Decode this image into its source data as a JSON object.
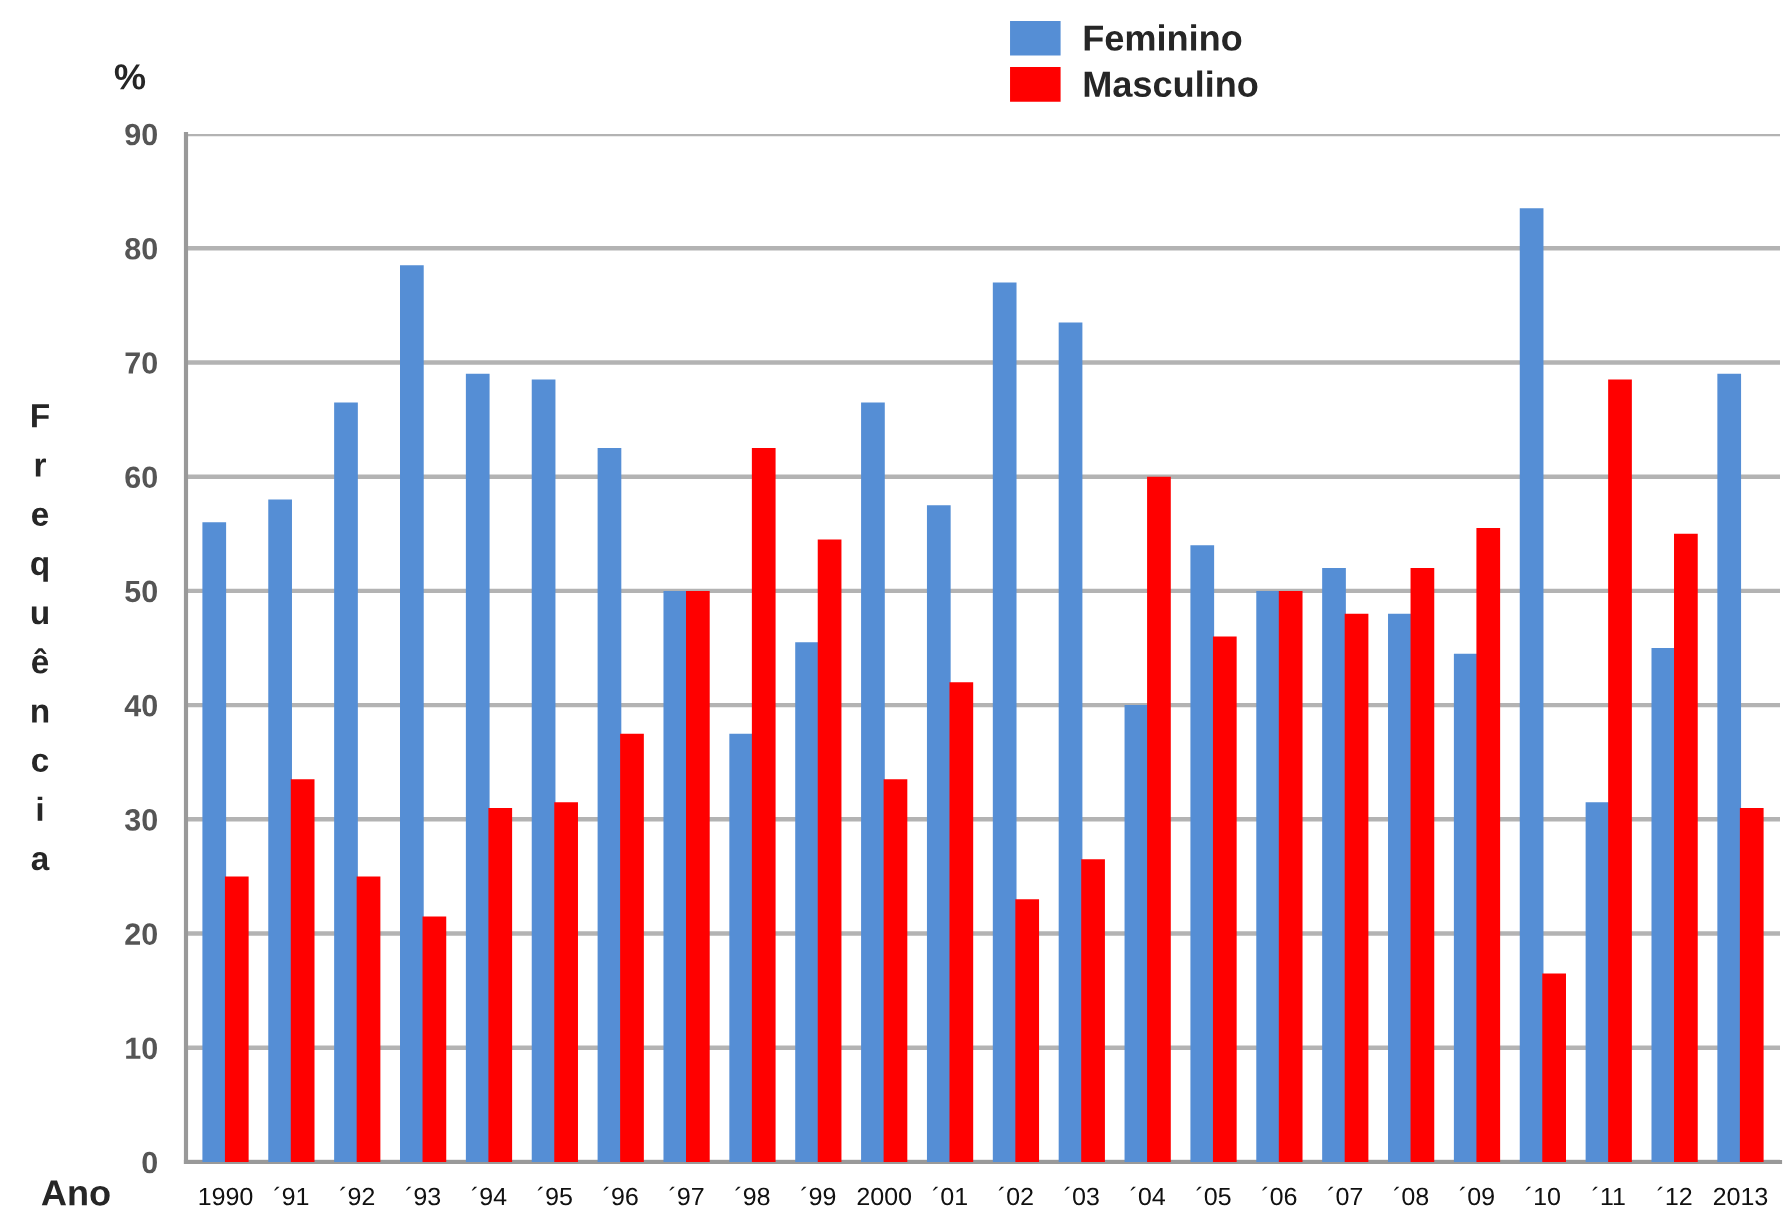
{
  "chart_data": {
    "type": "bar",
    "categories": [
      "1990",
      "´91",
      "´92",
      "´93",
      "´94",
      "´95",
      "´96",
      "´97",
      "´98",
      "´99",
      "2000",
      "´01",
      "´02",
      "´03",
      "´04",
      "´05",
      "´06",
      "´07",
      "´08",
      "´09",
      "´10",
      "´11",
      "´12",
      "2013"
    ],
    "series": [
      {
        "name": "Feminino",
        "color": "#558ed5",
        "values": [
          56,
          58,
          66.5,
          78.5,
          69,
          68.5,
          62.5,
          50,
          37.5,
          45.5,
          66.5,
          57.5,
          77,
          73.5,
          40,
          54,
          50,
          52,
          48,
          44.5,
          83.5,
          31.5,
          45,
          69
        ]
      },
      {
        "name": "Masculino",
        "color": "#ff0000",
        "values": [
          25,
          33.5,
          25,
          21.5,
          31,
          31.5,
          37.5,
          50,
          62.5,
          54.5,
          33.5,
          42,
          23,
          26.5,
          60,
          46,
          50,
          48,
          52,
          55.5,
          16.5,
          68.5,
          55,
          31
        ]
      }
    ],
    "xlabel": "Ano",
    "ylabel": "Frequência",
    "annotations": [
      "%"
    ],
    "ylim": [
      0,
      90
    ],
    "yticks": [
      0,
      10,
      20,
      30,
      40,
      50,
      60,
      70,
      80,
      90
    ],
    "grid": "y",
    "legend": "top"
  }
}
